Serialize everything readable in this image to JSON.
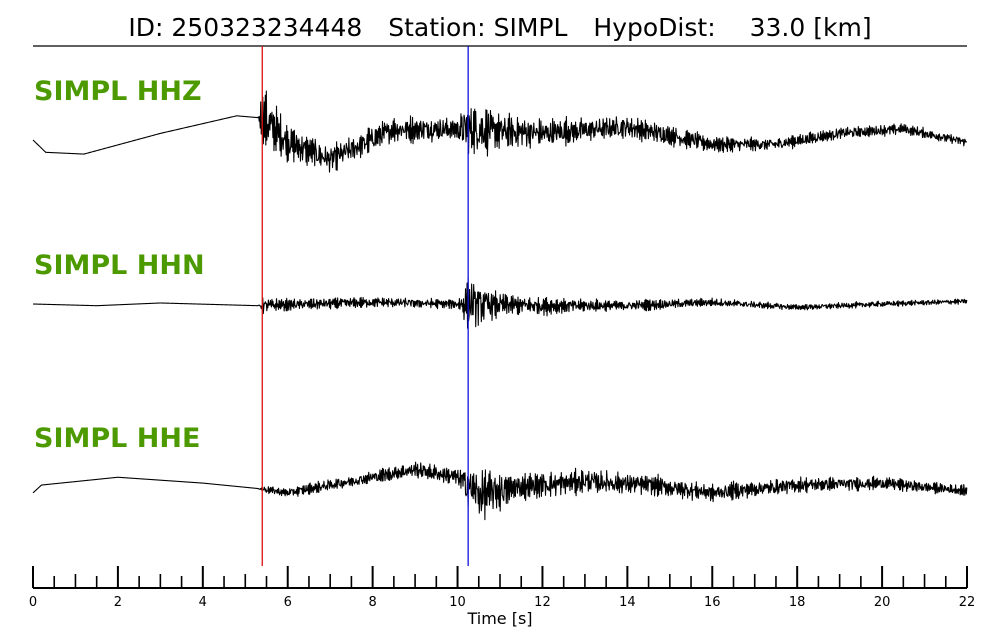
{
  "header": {
    "id_label": "ID:",
    "event_id": "250323234448",
    "station_label": "Station:",
    "station": "SIMPL",
    "hypodist_label": "HypoDist:",
    "hypodist_value": "33.0",
    "hypodist_unit": "[km]"
  },
  "colors": {
    "label_green": "#4c9a00",
    "p_pick": "#dd1111",
    "s_pick": "#1111dd",
    "trace": "#000000"
  },
  "chart_data": {
    "type": "line",
    "xlabel": "Time [s]",
    "xlim": [
      0,
      22
    ],
    "x_major_ticks": [
      0,
      2,
      4,
      6,
      8,
      10,
      12,
      14,
      16,
      18,
      20,
      22
    ],
    "x_minor_step": 0.5,
    "picks": [
      {
        "phase": "P",
        "time": 5.4,
        "color": "#dd1111"
      },
      {
        "phase": "S",
        "time": 10.25,
        "color": "#1111dd"
      }
    ],
    "series": [
      {
        "name": "SIMPL HHZ",
        "envelope": [
          [
            0,
            0
          ],
          [
            5.3,
            0
          ],
          [
            5.4,
            0.95
          ],
          [
            6.0,
            0.55
          ],
          [
            7.0,
            0.4
          ],
          [
            8.0,
            0.4
          ],
          [
            10.0,
            0.38
          ],
          [
            10.25,
            0.9
          ],
          [
            11.0,
            0.55
          ],
          [
            13.0,
            0.38
          ],
          [
            15.0,
            0.3
          ],
          [
            17.0,
            0.2
          ],
          [
            19.0,
            0.18
          ],
          [
            22.0,
            0.15
          ]
        ],
        "drift": [
          [
            0,
            0.0
          ],
          [
            0.3,
            -0.28
          ],
          [
            1.2,
            -0.32
          ],
          [
            3.0,
            0.15
          ],
          [
            4.8,
            0.55
          ],
          [
            5.4,
            0.5
          ],
          [
            6.0,
            -0.05
          ],
          [
            7.0,
            -0.45
          ],
          [
            8.5,
            0.25
          ],
          [
            10.0,
            0.25
          ],
          [
            12.0,
            0.15
          ],
          [
            14.0,
            0.3
          ],
          [
            16.0,
            -0.1
          ],
          [
            17.5,
            -0.1
          ],
          [
            19.0,
            0.15
          ],
          [
            20.5,
            0.25
          ],
          [
            22.0,
            -0.05
          ]
        ]
      },
      {
        "name": "SIMPL HHN",
        "envelope": [
          [
            0,
            0
          ],
          [
            5.3,
            0
          ],
          [
            5.4,
            0.3
          ],
          [
            6.0,
            0.22
          ],
          [
            8.0,
            0.2
          ],
          [
            10.0,
            0.18
          ],
          [
            10.25,
            1.0
          ],
          [
            11.0,
            0.45
          ],
          [
            13.0,
            0.25
          ],
          [
            15.0,
            0.18
          ],
          [
            18.0,
            0.12
          ],
          [
            22.0,
            0.1
          ]
        ],
        "drift": [
          [
            0,
            0.0
          ],
          [
            1.5,
            -0.05
          ],
          [
            3.0,
            0.03
          ],
          [
            5.3,
            -0.05
          ],
          [
            8.0,
            0.05
          ],
          [
            10.0,
            0.0
          ],
          [
            12.0,
            -0.05
          ],
          [
            14.0,
            -0.05
          ],
          [
            16.0,
            0.05
          ],
          [
            18.0,
            -0.1
          ],
          [
            20.0,
            0.0
          ],
          [
            22.0,
            0.08
          ]
        ]
      },
      {
        "name": "SIMPL HHE",
        "envelope": [
          [
            0,
            0
          ],
          [
            5.3,
            0
          ],
          [
            5.4,
            0.12
          ],
          [
            7.0,
            0.2
          ],
          [
            8.5,
            0.25
          ],
          [
            10.0,
            0.3
          ],
          [
            10.25,
            0.8
          ],
          [
            10.7,
            0.85
          ],
          [
            11.5,
            0.45
          ],
          [
            13.5,
            0.38
          ],
          [
            16.0,
            0.3
          ],
          [
            18.0,
            0.25
          ],
          [
            22.0,
            0.18
          ]
        ],
        "drift": [
          [
            0,
            -0.15
          ],
          [
            0.2,
            0.05
          ],
          [
            2.0,
            0.25
          ],
          [
            4.0,
            0.1
          ],
          [
            5.4,
            -0.05
          ],
          [
            6.0,
            -0.15
          ],
          [
            7.5,
            0.15
          ],
          [
            9.0,
            0.45
          ],
          [
            10.0,
            0.25
          ],
          [
            10.5,
            -0.2
          ],
          [
            11.5,
            0.0
          ],
          [
            13.0,
            0.15
          ],
          [
            14.5,
            0.05
          ],
          [
            16.0,
            -0.15
          ],
          [
            18.0,
            0.05
          ],
          [
            20.0,
            0.1
          ],
          [
            22.0,
            -0.1
          ]
        ]
      }
    ]
  }
}
